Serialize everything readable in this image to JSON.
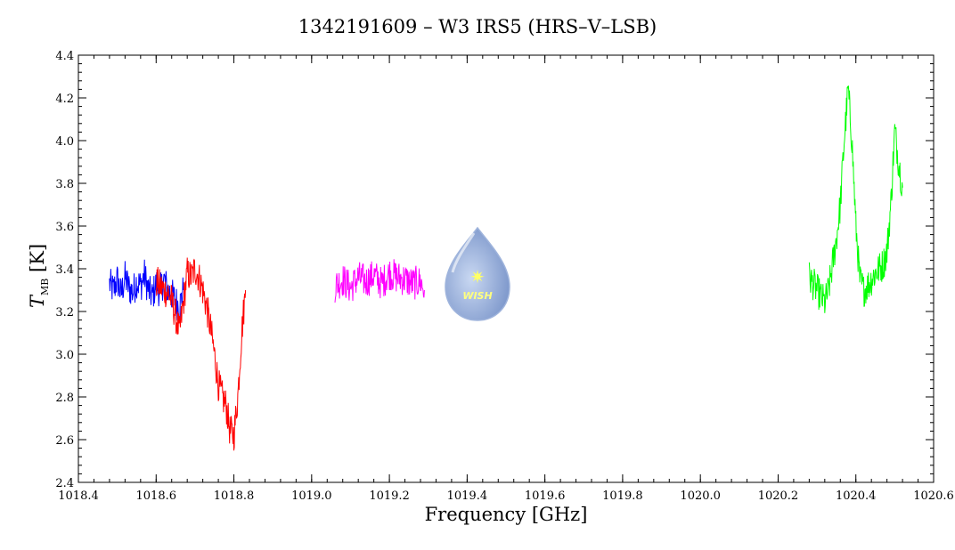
{
  "chart_data": {
    "type": "line",
    "title": "1342191609 – W3 IRS5 (HRS–V–LSB)",
    "xlabel": "Frequency [GHz]",
    "ylabel_symbol": "T",
    "ylabel_subscript": "MB",
    "ylabel_unit": "[K]",
    "xlim": [
      1018.4,
      1020.6
    ],
    "ylim": [
      2.4,
      4.4
    ],
    "xticks": [
      "1018.4",
      "1018.6",
      "1018.8",
      "1019.0",
      "1019.2",
      "1019.4",
      "1019.6",
      "1019.8",
      "1020.0",
      "1020.2",
      "1020.4",
      "1020.6"
    ],
    "yticks": [
      "2.4",
      "2.6",
      "2.8",
      "3.0",
      "3.2",
      "3.4",
      "3.6",
      "3.8",
      "4.0",
      "4.2",
      "4.4"
    ],
    "grid": false,
    "series": [
      {
        "color": "#0000ff",
        "x": [
          1018.48,
          1018.49,
          1018.5,
          1018.51,
          1018.52,
          1018.53,
          1018.54,
          1018.55,
          1018.56,
          1018.57,
          1018.58,
          1018.59,
          1018.6,
          1018.61,
          1018.62,
          1018.63,
          1018.64,
          1018.65,
          1018.66,
          1018.67
        ],
        "y": [
          3.33,
          3.3,
          3.35,
          3.28,
          3.36,
          3.31,
          3.29,
          3.34,
          3.32,
          3.37,
          3.3,
          3.27,
          3.33,
          3.29,
          3.35,
          3.3,
          3.28,
          3.25,
          3.22,
          3.3
        ]
      },
      {
        "color": "#ff0000",
        "x": [
          1018.6,
          1018.61,
          1018.62,
          1018.63,
          1018.64,
          1018.65,
          1018.66,
          1018.67,
          1018.68,
          1018.69,
          1018.7,
          1018.71,
          1018.72,
          1018.73,
          1018.74,
          1018.75,
          1018.76,
          1018.77,
          1018.78,
          1018.79,
          1018.8,
          1018.81,
          1018.82,
          1018.83
        ],
        "y": [
          3.34,
          3.32,
          3.3,
          3.29,
          3.25,
          3.18,
          3.1,
          3.24,
          3.38,
          3.36,
          3.4,
          3.36,
          3.3,
          3.22,
          3.12,
          3.0,
          2.86,
          2.8,
          2.76,
          2.64,
          2.62,
          2.8,
          3.1,
          3.3
        ]
      },
      {
        "color": "#ff00ff",
        "x": [
          1019.06,
          1019.08,
          1019.1,
          1019.12,
          1019.14,
          1019.16,
          1019.18,
          1019.2,
          1019.22,
          1019.24,
          1019.26,
          1019.28,
          1019.29
        ],
        "y": [
          3.32,
          3.35,
          3.31,
          3.36,
          3.34,
          3.37,
          3.33,
          3.38,
          3.36,
          3.35,
          3.33,
          3.34,
          3.3
        ]
      },
      {
        "color": "#00ff00",
        "x": [
          1020.28,
          1020.3,
          1020.32,
          1020.33,
          1020.34,
          1020.35,
          1020.36,
          1020.37,
          1020.38,
          1020.39,
          1020.4,
          1020.41,
          1020.42,
          1020.43,
          1020.44,
          1020.45,
          1020.46,
          1020.47,
          1020.48,
          1020.49,
          1020.5,
          1020.51,
          1020.52
        ],
        "y": [
          3.36,
          3.3,
          3.24,
          3.3,
          3.42,
          3.54,
          3.7,
          4.0,
          4.24,
          4.0,
          3.6,
          3.35,
          3.3,
          3.32,
          3.35,
          3.38,
          3.4,
          3.42,
          3.48,
          3.7,
          4.05,
          3.9,
          3.78
        ]
      }
    ]
  },
  "logo": {
    "text": "WISH",
    "fill_color": "#8da9d8",
    "star_color": "#ffff66"
  }
}
